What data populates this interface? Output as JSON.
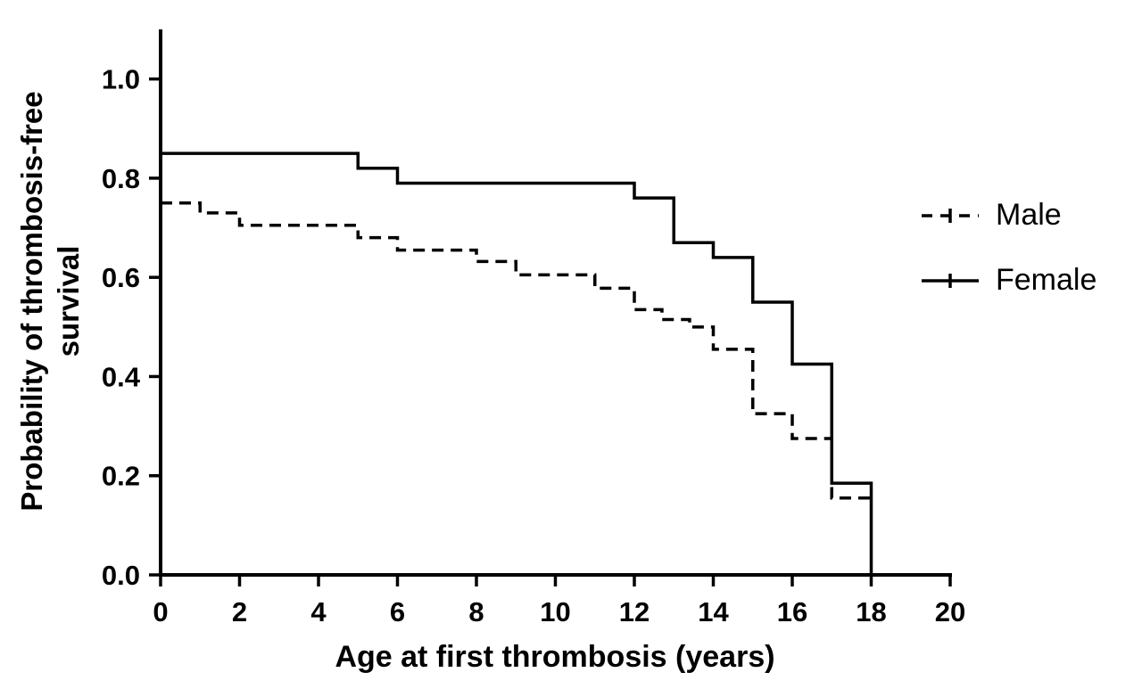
{
  "figure": {
    "background_color": "#ffffff",
    "axis_color": "#000000"
  },
  "chart_data": {
    "type": "line",
    "subtype": "kaplan-meier-step-survival",
    "title": "",
    "xlabel": "Age at first thrombosis (years)",
    "ylabel": "Probability of thrombosis-free survival",
    "ylabel_lines": [
      "Probability of thrombosis-free",
      "survival"
    ],
    "xlim": [
      0,
      20
    ],
    "ylim": [
      0,
      1.1
    ],
    "x_ticks": [
      0,
      2,
      4,
      6,
      8,
      10,
      12,
      14,
      16,
      18,
      20
    ],
    "y_ticks": [
      0.0,
      0.2,
      0.4,
      0.6,
      0.8,
      1.0
    ],
    "grid": false,
    "legend_position": "right-outside",
    "series": [
      {
        "name": "Male",
        "style": "dashed",
        "color": "#000000",
        "points": [
          [
            0,
            0.75
          ],
          [
            1,
            0.73
          ],
          [
            2,
            0.705
          ],
          [
            5,
            0.68
          ],
          [
            6,
            0.655
          ],
          [
            8,
            0.632
          ],
          [
            9,
            0.605
          ],
          [
            11,
            0.578
          ],
          [
            12,
            0.535
          ],
          [
            12.7,
            0.515
          ],
          [
            13.4,
            0.5
          ],
          [
            14,
            0.455
          ],
          [
            15,
            0.325
          ],
          [
            16,
            0.275
          ],
          [
            17,
            0.155
          ],
          [
            18,
            0.155
          ]
        ]
      },
      {
        "name": "Female",
        "style": "solid",
        "color": "#000000",
        "points": [
          [
            0,
            0.85
          ],
          [
            5,
            0.82
          ],
          [
            6,
            0.79
          ],
          [
            12,
            0.76
          ],
          [
            13,
            0.67
          ],
          [
            14,
            0.64
          ],
          [
            15,
            0.55
          ],
          [
            16,
            0.425
          ],
          [
            17,
            0.185
          ],
          [
            18,
            0.0
          ]
        ]
      }
    ]
  }
}
